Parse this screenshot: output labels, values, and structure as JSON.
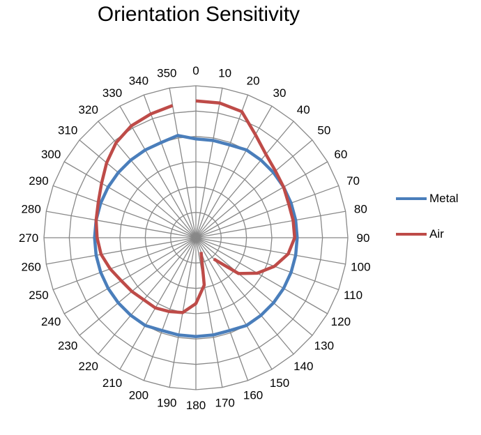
{
  "chart_data": {
    "type": "radar",
    "title": "Orientation Sensitivity",
    "categories": [
      "0",
      "10",
      "20",
      "30",
      "40",
      "50",
      "60",
      "70",
      "80",
      "90",
      "100",
      "110",
      "120",
      "130",
      "140",
      "150",
      "160",
      "170",
      "180",
      "190",
      "200",
      "210",
      "220",
      "230",
      "240",
      "250",
      "260",
      "270",
      "280",
      "290",
      "300",
      "310",
      "320",
      "330",
      "340",
      "350"
    ],
    "rlim": [
      0,
      60
    ],
    "rings": 6,
    "legend_position": "right",
    "series": [
      {
        "name": "Metal",
        "color": "#4a7ebb",
        "values": [
          39,
          39,
          39,
          40,
          40,
          40,
          40,
          40,
          40,
          40,
          40,
          40,
          40,
          40,
          40,
          40,
          39,
          39,
          39,
          39,
          39,
          40,
          40,
          40,
          40,
          40,
          40,
          40,
          40,
          40,
          40,
          40,
          40,
          40,
          40,
          41
        ]
      },
      {
        "name": "Air",
        "color": "#be4b48",
        "values": [
          54,
          54,
          53,
          47,
          43,
          41,
          40,
          39,
          39,
          39,
          37,
          33,
          28,
          22,
          11,
          null,
          6,
          19,
          26,
          30,
          31,
          32,
          32,
          33,
          34,
          36,
          38,
          39,
          40,
          41,
          43,
          46,
          49,
          51,
          52,
          53
        ]
      }
    ]
  }
}
